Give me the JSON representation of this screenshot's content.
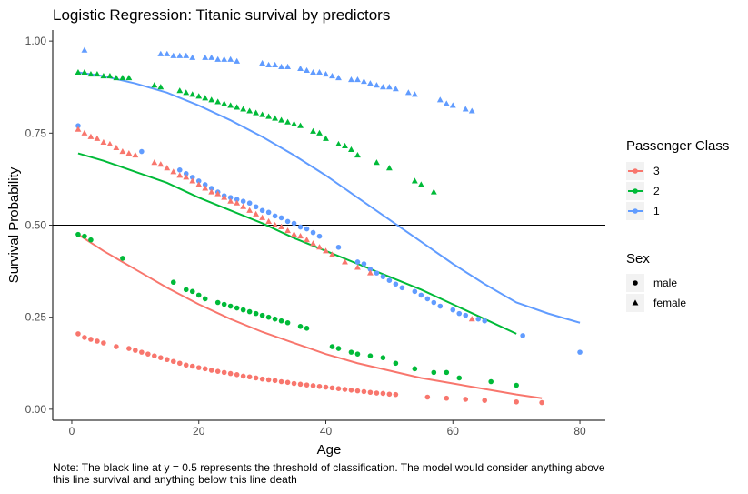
{
  "chart_data": {
    "type": "scatter",
    "title": "Logistic Regression: Titanic survival by predictors",
    "xlabel": "Age",
    "ylabel": "Survival Probability",
    "xlim": [
      -3,
      84
    ],
    "ylim": [
      -0.03,
      1.03
    ],
    "xticks": [
      0,
      20,
      40,
      60,
      80
    ],
    "xtick_labels": [
      "0",
      "20",
      "40",
      "60",
      "80"
    ],
    "yticks": [
      0,
      0.25,
      0.5,
      0.75,
      1
    ],
    "ytick_labels": [
      "0.00",
      "0.25",
      "0.50",
      "0.75",
      "1.00"
    ],
    "grid": false,
    "legend_position": "right",
    "threshold": 0.5,
    "note": "Note: The black line at y = 0.5 represents the threshold of classification. The model would consider anything above this line survival and anything below this line death",
    "legend_color": {
      "title": "Passenger Class",
      "items": [
        {
          "label": "3",
          "color": "#F8766D"
        },
        {
          "label": "2",
          "color": "#00BA38"
        },
        {
          "label": "1",
          "color": "#619CFF"
        }
      ]
    },
    "legend_shape": {
      "title": "Sex",
      "items": [
        {
          "label": "male",
          "shape": "circle"
        },
        {
          "label": "female",
          "shape": "triangle"
        }
      ]
    },
    "series": [
      {
        "class": "3",
        "sex": "male",
        "color": "#F8766D",
        "shape": "circle",
        "x": [
          1,
          2,
          3,
          4,
          5,
          7,
          9,
          10,
          11,
          12,
          13,
          14,
          15,
          16,
          17,
          18,
          19,
          20,
          21,
          22,
          23,
          24,
          25,
          26,
          27,
          28,
          29,
          30,
          31,
          32,
          33,
          34,
          35,
          36,
          37,
          38,
          39,
          40,
          41,
          42,
          43,
          44,
          45,
          46,
          47,
          48,
          49,
          50,
          51,
          56,
          59,
          62,
          65,
          70,
          74
        ],
        "y": [
          0.205,
          0.195,
          0.19,
          0.185,
          0.18,
          0.17,
          0.165,
          0.16,
          0.155,
          0.15,
          0.145,
          0.14,
          0.135,
          0.13,
          0.125,
          0.12,
          0.117,
          0.113,
          0.11,
          0.106,
          0.103,
          0.1,
          0.097,
          0.094,
          0.09,
          0.088,
          0.085,
          0.082,
          0.08,
          0.078,
          0.075,
          0.073,
          0.07,
          0.068,
          0.066,
          0.064,
          0.062,
          0.06,
          0.058,
          0.056,
          0.054,
          0.052,
          0.05,
          0.048,
          0.046,
          0.044,
          0.043,
          0.041,
          0.04,
          0.033,
          0.03,
          0.027,
          0.024,
          0.02,
          0.018
        ]
      },
      {
        "class": "2",
        "sex": "male",
        "color": "#00BA38",
        "shape": "circle",
        "x": [
          1,
          2,
          3,
          8,
          16,
          18,
          19,
          20,
          21,
          23,
          24,
          25,
          26,
          27,
          28,
          29,
          30,
          31,
          32,
          33,
          34,
          36,
          37,
          41,
          42,
          44,
          45,
          47,
          49,
          51,
          54,
          57,
          59,
          61,
          66,
          70
        ],
        "y": [
          0.475,
          0.47,
          0.46,
          0.41,
          0.345,
          0.325,
          0.32,
          0.31,
          0.3,
          0.29,
          0.285,
          0.28,
          0.275,
          0.27,
          0.265,
          0.26,
          0.255,
          0.25,
          0.245,
          0.24,
          0.235,
          0.225,
          0.22,
          0.17,
          0.165,
          0.155,
          0.15,
          0.145,
          0.14,
          0.125,
          0.11,
          0.1,
          0.1,
          0.085,
          0.075,
          0.065
        ]
      },
      {
        "class": "1",
        "sex": "male",
        "color": "#619CFF",
        "shape": "circle",
        "x": [
          1,
          11,
          17,
          18,
          19,
          20,
          21,
          22,
          23,
          24,
          25,
          26,
          27,
          28,
          29,
          30,
          31,
          32,
          33,
          34,
          35,
          36,
          37,
          38,
          39,
          42,
          45,
          46,
          47,
          48,
          49,
          50,
          51,
          52,
          54,
          55,
          56,
          57,
          58,
          60,
          61,
          62,
          64,
          65,
          71,
          80
        ],
        "y": [
          0.77,
          0.7,
          0.65,
          0.64,
          0.63,
          0.62,
          0.61,
          0.6,
          0.59,
          0.58,
          0.575,
          0.57,
          0.565,
          0.56,
          0.55,
          0.54,
          0.535,
          0.525,
          0.52,
          0.51,
          0.505,
          0.495,
          0.49,
          0.48,
          0.47,
          0.44,
          0.4,
          0.395,
          0.38,
          0.37,
          0.36,
          0.35,
          0.34,
          0.33,
          0.32,
          0.31,
          0.3,
          0.29,
          0.28,
          0.27,
          0.26,
          0.255,
          0.245,
          0.24,
          0.2,
          0.155
        ]
      },
      {
        "class": "3",
        "sex": "female",
        "color": "#F8766D",
        "shape": "triangle",
        "x": [
          1,
          2,
          3,
          4,
          5,
          6,
          7,
          8,
          9,
          10,
          13,
          14,
          15,
          16,
          17,
          18,
          19,
          20,
          21,
          22,
          23,
          24,
          25,
          26,
          27,
          28,
          29,
          30,
          31,
          32,
          33,
          34,
          35,
          36,
          37,
          38,
          39,
          40,
          41,
          43,
          45,
          47,
          63
        ],
        "y": [
          0.76,
          0.75,
          0.74,
          0.735,
          0.725,
          0.72,
          0.71,
          0.7,
          0.695,
          0.69,
          0.67,
          0.665,
          0.655,
          0.645,
          0.635,
          0.63,
          0.62,
          0.61,
          0.6,
          0.59,
          0.585,
          0.575,
          0.565,
          0.56,
          0.55,
          0.54,
          0.53,
          0.52,
          0.51,
          0.5,
          0.495,
          0.485,
          0.475,
          0.47,
          0.46,
          0.45,
          0.44,
          0.43,
          0.42,
          0.4,
          0.385,
          0.37,
          0.245
        ]
      },
      {
        "class": "2",
        "sex": "female",
        "color": "#00BA38",
        "shape": "triangle",
        "x": [
          1,
          2,
          3,
          4,
          5,
          6,
          7,
          8,
          9,
          13,
          14,
          17,
          18,
          19,
          20,
          21,
          22,
          23,
          24,
          25,
          26,
          27,
          28,
          29,
          30,
          31,
          32,
          33,
          34,
          35,
          36,
          38,
          39,
          40,
          42,
          43,
          44,
          45,
          48,
          50,
          54,
          55,
          57
        ],
        "y": [
          0.915,
          0.915,
          0.91,
          0.91,
          0.905,
          0.905,
          0.9,
          0.9,
          0.9,
          0.88,
          0.875,
          0.865,
          0.86,
          0.855,
          0.85,
          0.845,
          0.84,
          0.835,
          0.83,
          0.825,
          0.82,
          0.815,
          0.81,
          0.805,
          0.8,
          0.795,
          0.79,
          0.785,
          0.78,
          0.775,
          0.77,
          0.755,
          0.75,
          0.735,
          0.72,
          0.715,
          0.705,
          0.69,
          0.67,
          0.655,
          0.62,
          0.61,
          0.59
        ]
      },
      {
        "class": "1",
        "sex": "female",
        "color": "#619CFF",
        "shape": "triangle",
        "x": [
          2,
          14,
          15,
          16,
          17,
          18,
          19,
          21,
          22,
          23,
          24,
          25,
          26,
          30,
          31,
          32,
          33,
          34,
          36,
          37,
          38,
          39,
          40,
          41,
          42,
          44,
          45,
          46,
          47,
          48,
          49,
          50,
          51,
          53,
          54,
          58,
          59,
          60,
          62,
          63
        ],
        "y": [
          0.975,
          0.965,
          0.965,
          0.96,
          0.96,
          0.96,
          0.955,
          0.955,
          0.955,
          0.95,
          0.95,
          0.95,
          0.945,
          0.94,
          0.935,
          0.935,
          0.93,
          0.93,
          0.925,
          0.92,
          0.915,
          0.915,
          0.91,
          0.905,
          0.9,
          0.895,
          0.895,
          0.89,
          0.885,
          0.88,
          0.875,
          0.875,
          0.87,
          0.86,
          0.855,
          0.84,
          0.83,
          0.825,
          0.815,
          0.81
        ]
      }
    ],
    "lines": [
      {
        "class": "3",
        "color": "#F8766D",
        "x": [
          1,
          5,
          10,
          15,
          20,
          25,
          30,
          35,
          40,
          45,
          50,
          55,
          60,
          65,
          70,
          74
        ],
        "y": [
          0.475,
          0.43,
          0.38,
          0.33,
          0.285,
          0.245,
          0.21,
          0.18,
          0.15,
          0.125,
          0.105,
          0.085,
          0.07,
          0.055,
          0.04,
          0.03
        ]
      },
      {
        "class": "2",
        "color": "#00BA38",
        "x": [
          1,
          5,
          10,
          15,
          20,
          25,
          30,
          35,
          40,
          45,
          50,
          55,
          60,
          65,
          70
        ],
        "y": [
          0.695,
          0.675,
          0.645,
          0.615,
          0.575,
          0.54,
          0.505,
          0.465,
          0.43,
          0.395,
          0.36,
          0.325,
          0.285,
          0.245,
          0.205
        ]
      },
      {
        "class": "1",
        "color": "#619CFF",
        "x": [
          1,
          5,
          10,
          15,
          20,
          25,
          30,
          35,
          40,
          45,
          50,
          55,
          60,
          65,
          70,
          75,
          80
        ],
        "y": [
          0.915,
          0.905,
          0.885,
          0.86,
          0.825,
          0.785,
          0.74,
          0.69,
          0.635,
          0.575,
          0.515,
          0.455,
          0.395,
          0.34,
          0.29,
          0.26,
          0.235
        ]
      }
    ]
  }
}
